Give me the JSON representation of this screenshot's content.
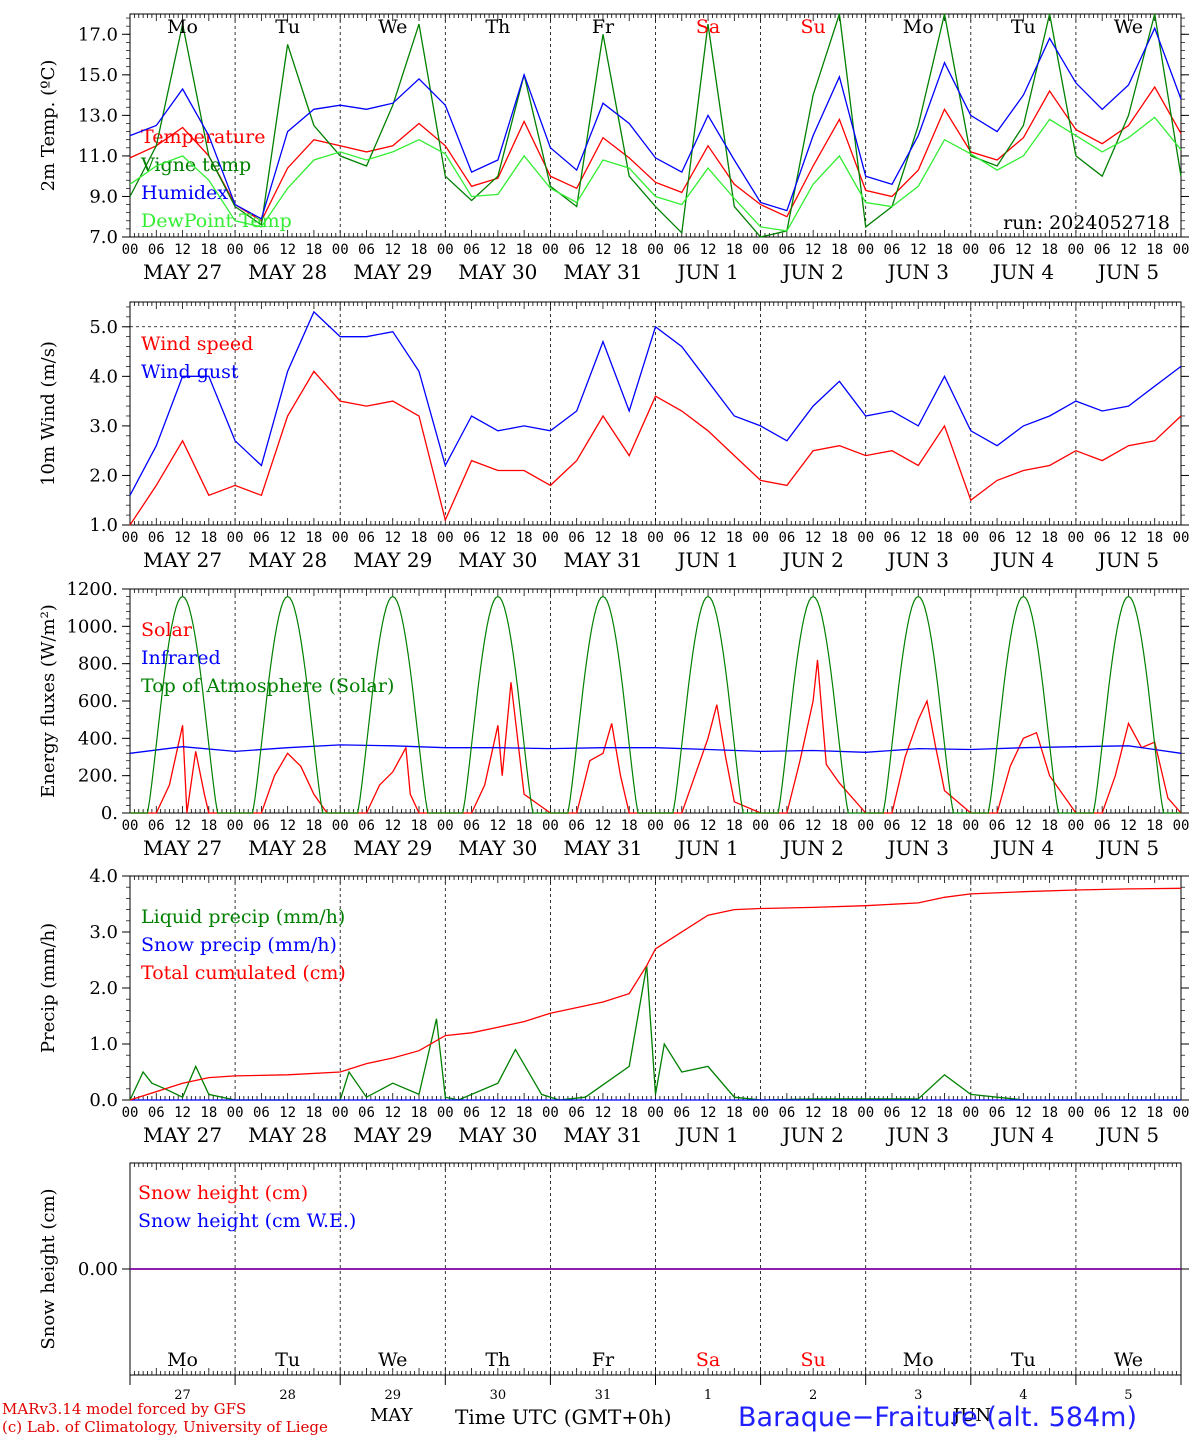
{
  "run_label": "run: 2024052718",
  "station": "Baraque−Fraiture (alt. 584m)",
  "footer": {
    "line1": "MARv3.14 model forced by GFS",
    "line2": "(c) Lab. of Climatology, University of Liege"
  },
  "x_axis_title": "Time UTC (GMT+0h)",
  "months": [
    "MAY",
    "JUN"
  ],
  "day_names": [
    "Mo",
    "Tu",
    "We",
    "Th",
    "Fr",
    "Sa",
    "Su",
    "Mo",
    "Tu",
    "We"
  ],
  "day_numbers": [
    "27",
    "28",
    "29",
    "30",
    "31",
    "1",
    "2",
    "3",
    "4",
    "5"
  ],
  "date_labels": [
    "MAY 27",
    "MAY 28",
    "MAY 29",
    "MAY 30",
    "MAY 31",
    "JUN  1",
    "JUN  2",
    "JUN  3",
    "JUN  4",
    "JUN  5"
  ],
  "hour_labels": [
    "00",
    "06",
    "12",
    "18"
  ],
  "colors": {
    "red": "#ff0000",
    "green": "#008000",
    "blue": "#0000ff",
    "lightgreen": "#33ee33",
    "purple": "#8000a0",
    "weekend": "#ff0000"
  },
  "chart_data": [
    {
      "type": "line",
      "ylabel": "2m Temp. (ºC)",
      "ylim": [
        7.0,
        18.0
      ],
      "yticks": [
        "7.0",
        "9.0",
        "11.0",
        "13.0",
        "15.0",
        "17.0"
      ],
      "x_unit": "hours since May 27 00 UTC",
      "legend_placement": "left",
      "series": [
        {
          "name": "Temperature",
          "color": "#ff0000",
          "x": [
            0,
            6,
            12,
            18,
            24,
            30,
            36,
            42,
            48,
            54,
            60,
            66,
            72,
            78,
            84,
            90,
            96,
            102,
            108,
            114,
            120,
            126,
            132,
            138,
            144,
            150,
            156,
            162,
            168,
            174,
            180,
            186,
            192,
            198,
            204,
            210,
            216,
            222,
            228,
            234,
            240
          ],
          "values": [
            10.9,
            11.5,
            12.4,
            11.0,
            8.6,
            7.8,
            10.4,
            11.8,
            11.5,
            11.2,
            11.5,
            12.6,
            11.5,
            9.5,
            9.9,
            12.7,
            10.0,
            9.4,
            11.9,
            10.9,
            9.7,
            9.2,
            11.5,
            9.6,
            8.6,
            8.0,
            10.5,
            12.8,
            9.3,
            9.0,
            10.3,
            13.3,
            11.2,
            10.8,
            11.9,
            14.2,
            12.3,
            11.6,
            12.5,
            14.4,
            12.1
          ]
        },
        {
          "name": "Vigne temp",
          "color": "#008000",
          "x": [
            0,
            6,
            12,
            18,
            24,
            30,
            36,
            42,
            48,
            54,
            60,
            66,
            72,
            78,
            84,
            90,
            96,
            102,
            108,
            114,
            120,
            126,
            132,
            138,
            144,
            150,
            156,
            162,
            168,
            174,
            180,
            186,
            192,
            198,
            204,
            210,
            216,
            222,
            228,
            234,
            240
          ],
          "values": [
            9.0,
            11.5,
            17.5,
            11.0,
            8.5,
            7.6,
            16.5,
            12.5,
            11.0,
            10.5,
            13.5,
            17.5,
            10.0,
            8.8,
            10.0,
            15.0,
            9.5,
            8.5,
            17.0,
            10.0,
            8.5,
            7.2,
            17.5,
            8.5,
            7.0,
            7.3,
            14.0,
            18.0,
            7.5,
            8.5,
            12.5,
            18.0,
            11.0,
            10.5,
            12.5,
            18.0,
            11.0,
            10.0,
            13.0,
            18.0,
            10.0
          ]
        },
        {
          "name": "Humidex",
          "color": "#0000ff",
          "x": [
            0,
            6,
            12,
            18,
            24,
            30,
            36,
            42,
            48,
            54,
            60,
            66,
            72,
            78,
            84,
            90,
            96,
            102,
            108,
            114,
            120,
            126,
            132,
            138,
            144,
            150,
            156,
            162,
            168,
            174,
            180,
            186,
            192,
            198,
            204,
            210,
            216,
            222,
            228,
            234,
            240
          ],
          "values": [
            12.0,
            12.5,
            14.3,
            12.0,
            8.6,
            7.9,
            12.2,
            13.3,
            13.5,
            13.3,
            13.6,
            14.8,
            13.5,
            10.2,
            10.8,
            15.0,
            11.4,
            10.3,
            13.6,
            12.6,
            10.9,
            10.2,
            13.0,
            10.8,
            8.7,
            8.3,
            12.0,
            14.9,
            10.0,
            9.6,
            12.0,
            15.6,
            13.0,
            12.2,
            14.0,
            16.8,
            14.6,
            13.3,
            14.5,
            17.3,
            13.8
          ]
        },
        {
          "name": "DewPoint Temp",
          "color": "#33ee33",
          "x": [
            0,
            6,
            12,
            18,
            24,
            30,
            36,
            42,
            48,
            54,
            60,
            66,
            72,
            78,
            84,
            90,
            96,
            102,
            108,
            114,
            120,
            126,
            132,
            138,
            144,
            150,
            156,
            162,
            168,
            174,
            180,
            186,
            192,
            198,
            204,
            210,
            216,
            222,
            228,
            234,
            240
          ],
          "values": [
            9.6,
            10.5,
            11.0,
            9.8,
            7.8,
            7.5,
            9.4,
            10.8,
            11.2,
            10.8,
            11.2,
            11.8,
            11.1,
            9.0,
            9.1,
            11.0,
            9.4,
            8.7,
            10.8,
            10.4,
            9.0,
            8.6,
            10.4,
            8.9,
            7.5,
            7.3,
            9.6,
            11.0,
            8.7,
            8.5,
            9.5,
            11.8,
            11.1,
            10.3,
            11.0,
            12.8,
            12.0,
            11.2,
            11.9,
            12.9,
            11.3
          ]
        }
      ]
    },
    {
      "type": "line",
      "ylabel": "10m Wind (m/s)",
      "ylim": [
        1.0,
        5.5
      ],
      "yticks": [
        "1.0",
        "2.0",
        "3.0",
        "4.0",
        "5.0"
      ],
      "x_unit": "hours since May 27 00 UTC",
      "legend_placement": "left",
      "series": [
        {
          "name": "Wind speed",
          "color": "#ff0000",
          "x": [
            0,
            6,
            12,
            18,
            24,
            30,
            36,
            42,
            48,
            54,
            60,
            66,
            72,
            78,
            84,
            90,
            96,
            102,
            108,
            114,
            120,
            126,
            132,
            138,
            144,
            150,
            156,
            162,
            168,
            174,
            180,
            186,
            192,
            198,
            204,
            210,
            216,
            222,
            228,
            234,
            240
          ],
          "values": [
            1.0,
            1.8,
            2.7,
            1.6,
            1.8,
            1.6,
            3.2,
            4.1,
            3.5,
            3.4,
            3.5,
            3.2,
            1.1,
            2.3,
            2.1,
            2.1,
            1.8,
            2.3,
            3.2,
            2.4,
            3.6,
            3.3,
            2.9,
            2.4,
            1.9,
            1.8,
            2.5,
            2.6,
            2.4,
            2.5,
            2.2,
            3.0,
            1.5,
            1.9,
            2.1,
            2.2,
            2.5,
            2.3,
            2.6,
            2.7,
            3.2
          ]
        },
        {
          "name": "Wind gust",
          "color": "#0000ff",
          "x": [
            0,
            6,
            12,
            18,
            24,
            30,
            36,
            42,
            48,
            54,
            60,
            66,
            72,
            78,
            84,
            90,
            96,
            102,
            108,
            114,
            120,
            126,
            132,
            138,
            144,
            150,
            156,
            162,
            168,
            174,
            180,
            186,
            192,
            198,
            204,
            210,
            216,
            222,
            228,
            234,
            240
          ],
          "values": [
            1.6,
            2.6,
            4.0,
            4.0,
            2.7,
            2.2,
            4.1,
            5.3,
            4.8,
            4.8,
            4.9,
            4.1,
            2.2,
            3.2,
            2.9,
            3.0,
            2.9,
            3.3,
            4.7,
            3.3,
            5.0,
            4.6,
            3.9,
            3.2,
            3.0,
            2.7,
            3.4,
            3.9,
            3.2,
            3.3,
            3.0,
            4.0,
            2.9,
            2.6,
            3.0,
            3.2,
            3.5,
            3.3,
            3.4,
            3.8,
            4.2
          ]
        }
      ]
    },
    {
      "type": "line",
      "ylabel": "Energy fluxes (W/m²)",
      "ylim": [
        0,
        1200
      ],
      "yticks": [
        "0.",
        "200.",
        "400.",
        "600.",
        "800.",
        "1000.",
        "1200."
      ],
      "x_unit": "hours since May 27 00 UTC",
      "legend_placement": "left",
      "series": [
        {
          "name": "Solar",
          "color": "#ff0000",
          "x": [
            0,
            6,
            9,
            12,
            13,
            15,
            17,
            18,
            24,
            30,
            33,
            36,
            39,
            42,
            45,
            48,
            54,
            57,
            60,
            63,
            64,
            66,
            72,
            78,
            81,
            84,
            85,
            87,
            90,
            96,
            102,
            105,
            108,
            110,
            112,
            114,
            120,
            126,
            129,
            132,
            134,
            136,
            138,
            144,
            150,
            153,
            156,
            157,
            159,
            162,
            168,
            174,
            177,
            180,
            182,
            184,
            186,
            192,
            198,
            201,
            204,
            207,
            210,
            216,
            222,
            225,
            228,
            231,
            234,
            237,
            240
          ],
          "values": [
            0,
            0,
            150,
            470,
            0,
            330,
            100,
            0,
            0,
            0,
            200,
            320,
            250,
            100,
            0,
            0,
            0,
            150,
            220,
            350,
            100,
            0,
            0,
            0,
            150,
            470,
            200,
            700,
            100,
            0,
            0,
            280,
            320,
            480,
            200,
            0,
            0,
            0,
            200,
            400,
            580,
            300,
            60,
            0,
            0,
            280,
            600,
            820,
            260,
            160,
            0,
            0,
            300,
            500,
            600,
            350,
            120,
            0,
            0,
            250,
            400,
            430,
            200,
            0,
            0,
            200,
            480,
            350,
            380,
            80,
            0
          ]
        },
        {
          "name": "Infrared",
          "color": "#0000ff",
          "x": [
            0,
            12,
            24,
            36,
            48,
            60,
            72,
            84,
            96,
            108,
            120,
            132,
            144,
            156,
            168,
            180,
            192,
            204,
            216,
            228,
            240
          ],
          "values": [
            320,
            355,
            330,
            350,
            365,
            360,
            350,
            350,
            345,
            350,
            350,
            340,
            330,
            335,
            325,
            345,
            340,
            350,
            355,
            360,
            320
          ]
        },
        {
          "name": "Top of Atmosphere (Solar)",
          "color": "#008000",
          "day_peak": 1160
        }
      ]
    },
    {
      "type": "line",
      "ylabel": "Precip (mm/h)",
      "ylim": [
        0.0,
        4.0
      ],
      "yticks": [
        "0.0",
        "1.0",
        "2.0",
        "3.0",
        "4.0"
      ],
      "x_unit": "hours since May 27 00 UTC",
      "legend_placement": "left",
      "series": [
        {
          "name": "Liquid precip (mm/h)",
          "color": "#008000",
          "x": [
            0,
            3,
            5,
            8,
            12,
            15,
            18,
            24,
            36,
            48,
            50,
            54,
            60,
            66,
            70,
            72,
            75,
            84,
            88,
            94,
            98,
            104,
            114,
            118,
            120,
            122,
            126,
            132,
            138,
            144,
            156,
            168,
            180,
            186,
            192,
            204,
            216,
            228,
            240
          ],
          "values": [
            0.0,
            0.5,
            0.3,
            0.2,
            0.05,
            0.6,
            0.1,
            0.0,
            0.0,
            0.0,
            0.5,
            0.05,
            0.3,
            0.1,
            1.45,
            0.05,
            0.0,
            0.3,
            0.9,
            0.1,
            0.0,
            0.05,
            0.6,
            2.4,
            0.1,
            1.0,
            0.5,
            0.6,
            0.05,
            0.0,
            0.02,
            0.02,
            0.02,
            0.45,
            0.1,
            0.0,
            0.0,
            0.0,
            0.0
          ]
        },
        {
          "name": "Snow precip (mm/h)",
          "color": "#0000ff",
          "x": [
            0,
            240
          ],
          "values": [
            0,
            0
          ]
        },
        {
          "name": "Total cumulated (cm)",
          "color": "#ff0000",
          "x": [
            0,
            6,
            12,
            18,
            24,
            36,
            48,
            54,
            60,
            66,
            72,
            78,
            84,
            90,
            96,
            102,
            108,
            114,
            118,
            120,
            124,
            132,
            138,
            144,
            156,
            168,
            180,
            186,
            192,
            204,
            216,
            228,
            240
          ],
          "values": [
            0.0,
            0.15,
            0.3,
            0.4,
            0.43,
            0.45,
            0.5,
            0.65,
            0.75,
            0.88,
            1.15,
            1.2,
            1.3,
            1.4,
            1.55,
            1.65,
            1.75,
            1.9,
            2.4,
            2.7,
            2.9,
            3.3,
            3.4,
            3.42,
            3.44,
            3.47,
            3.52,
            3.62,
            3.68,
            3.72,
            3.75,
            3.77,
            3.78
          ]
        }
      ]
    },
    {
      "type": "line",
      "ylabel": "Snow height (cm)",
      "ylim": [
        -1.0,
        1.0
      ],
      "yticks": [
        "0.00"
      ],
      "x_unit": "hours since May 27 00 UTC",
      "legend_placement": "left",
      "series": [
        {
          "name": "Snow height (cm)",
          "color": "#ff0000",
          "x": [
            0,
            240
          ],
          "values": [
            0,
            0
          ]
        },
        {
          "name": "Snow height (cm W.E.)",
          "color": "#0000ff",
          "x": [
            0,
            240
          ],
          "values": [
            0,
            0
          ]
        }
      ]
    }
  ]
}
